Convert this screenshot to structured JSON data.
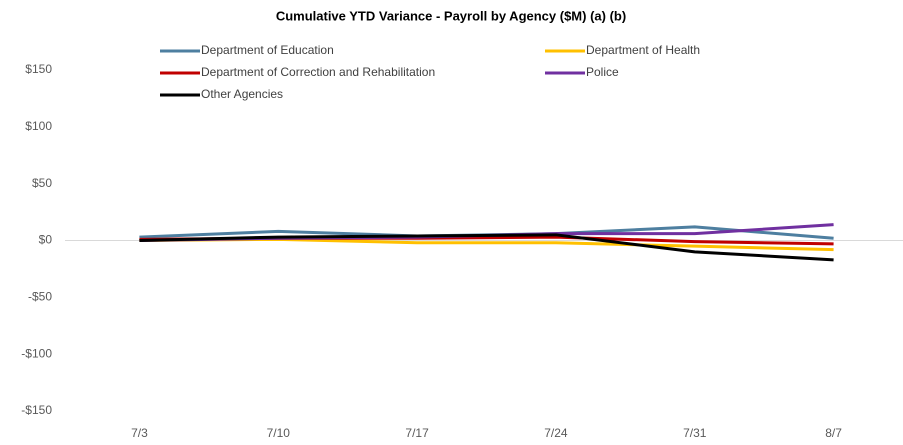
{
  "chart_data": {
    "type": "line",
    "title": "Cumulative YTD Variance - Payroll by Agency ($M) (a) (b)",
    "categories": [
      "7/3",
      "7/10",
      "7/17",
      "7/24",
      "7/31",
      "8/7"
    ],
    "series": [
      {
        "name": "Department of Education",
        "color": "#4e7fa0",
        "values": [
          3,
          8,
          4,
          6,
          12,
          2
        ]
      },
      {
        "name": "Department of Health",
        "color": "#ffc000",
        "values": [
          0,
          1,
          -2,
          -2,
          -5,
          -8
        ]
      },
      {
        "name": "Department of Correction and Rehabilitation",
        "color": "#c00000",
        "values": [
          1,
          2,
          2,
          3,
          -1,
          -3
        ]
      },
      {
        "name": "Police",
        "color": "#7030a0",
        "values": [
          0,
          2,
          3,
          6,
          6,
          14
        ]
      },
      {
        "name": "Other Agencies",
        "color": "#000000",
        "values": [
          0,
          3,
          4,
          5,
          -10,
          -17
        ]
      }
    ],
    "ylim": [
      -150,
      150
    ],
    "yticks": [
      {
        "value": -150,
        "label": "-$150"
      },
      {
        "value": -100,
        "label": "-$100"
      },
      {
        "value": -50,
        "label": "-$50"
      },
      {
        "value": 0,
        "label": "$0"
      },
      {
        "value": 50,
        "label": "$50"
      },
      {
        "value": 100,
        "label": "$100"
      },
      {
        "value": 150,
        "label": "$150"
      }
    ],
    "grid": false,
    "legend": "top"
  }
}
